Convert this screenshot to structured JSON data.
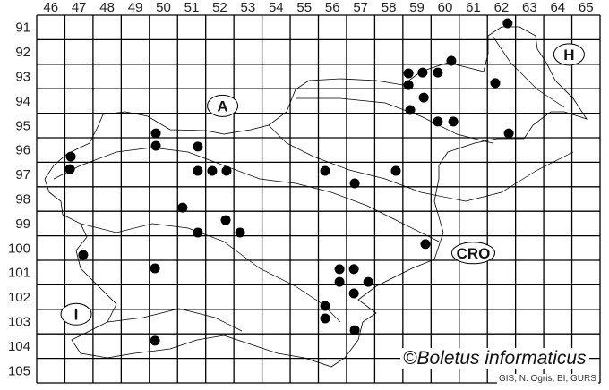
{
  "map": {
    "columns": [
      "46",
      "47",
      "48",
      "49",
      "50",
      "51",
      "52",
      "53",
      "54",
      "55",
      "56",
      "57",
      "58",
      "59",
      "60",
      "61",
      "62",
      "63",
      "64",
      "65"
    ],
    "rows": [
      "91",
      "92",
      "93",
      "94",
      "95",
      "96",
      "97",
      "98",
      "99",
      "100",
      "101",
      "102",
      "103",
      "104",
      "105"
    ],
    "country_labels": [
      {
        "text": "A",
        "col": 52.6,
        "row": 94.7
      },
      {
        "text": "H",
        "col": 64.9,
        "row": 92.6
      },
      {
        "text": "CRO",
        "col": 61.5,
        "row": 100.7
      },
      {
        "text": "I",
        "col": 47.4,
        "row": 103.2
      }
    ],
    "records": [
      [
        47.21,
        96.77
      ],
      [
        47.18,
        97.28
      ],
      [
        50.23,
        95.82
      ],
      [
        50.23,
        96.33
      ],
      [
        51.72,
        96.36
      ],
      [
        51.72,
        97.35
      ],
      [
        52.23,
        97.35
      ],
      [
        52.74,
        97.35
      ],
      [
        51.18,
        98.85
      ],
      [
        52.71,
        99.36
      ],
      [
        51.72,
        99.87
      ],
      [
        53.22,
        99.87
      ],
      [
        47.65,
        100.78
      ],
      [
        50.2,
        101.33
      ],
      [
        50.2,
        104.28
      ],
      [
        56.24,
        97.35
      ],
      [
        57.29,
        97.86
      ],
      [
        58.75,
        97.35
      ],
      [
        59.2,
        93.37
      ],
      [
        59.7,
        93.34
      ],
      [
        60.24,
        93.34
      ],
      [
        60.72,
        92.86
      ],
      [
        59.2,
        93.85
      ],
      [
        59.74,
        94.36
      ],
      [
        59.26,
        94.87
      ],
      [
        60.24,
        95.34
      ],
      [
        60.79,
        95.34
      ],
      [
        62.72,
        91.33
      ],
      [
        62.28,
        93.77
      ],
      [
        62.76,
        95.82
      ],
      [
        59.8,
        100.34
      ],
      [
        56.75,
        101.36
      ],
      [
        57.26,
        101.36
      ],
      [
        56.75,
        101.88
      ],
      [
        57.77,
        101.88
      ],
      [
        57.26,
        102.35
      ],
      [
        56.24,
        102.86
      ],
      [
        56.24,
        103.37
      ],
      [
        57.29,
        103.85
      ]
    ],
    "dot_color": "#000000",
    "line_color": "#000000"
  },
  "watermark": "©Boletus informaticus",
  "credit": "GIS, N. Ogris, BI, GURS"
}
